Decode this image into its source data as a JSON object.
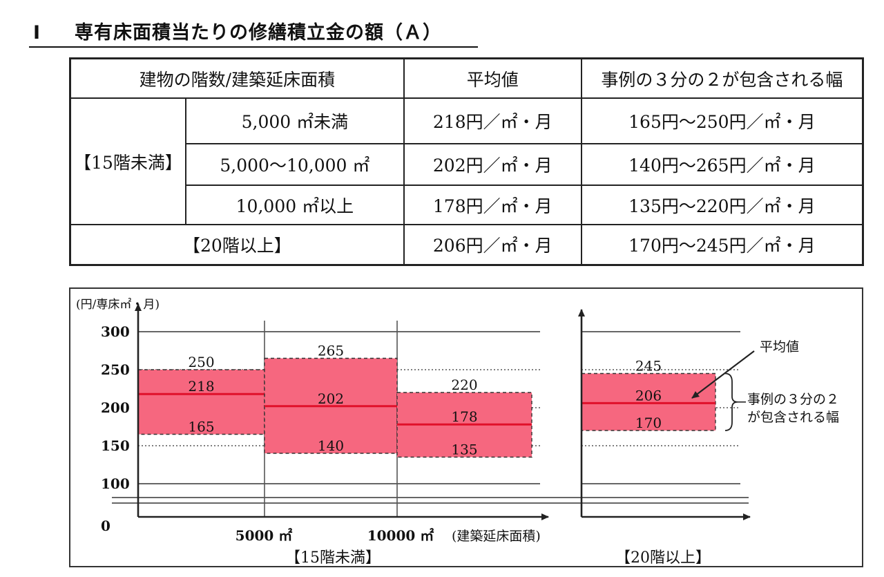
{
  "heading": {
    "number": "Ⅰ",
    "text": "専有床面積当たりの修繕積立金の額（Ａ）"
  },
  "table": {
    "headers": [
      "建物の階数/建築延床面積",
      "平均値",
      "事例の３分の２が包含される幅"
    ],
    "group_under15": "【15階未満】",
    "rows": [
      {
        "area": "5,000 ㎡未満",
        "average": "218円／㎡・月",
        "range": "165円～250円／㎡・月"
      },
      {
        "area": "5,000～10,000 ㎡",
        "average": "202円／㎡・月",
        "range": "140円～265円／㎡・月"
      },
      {
        "area": "10,000 ㎡以上",
        "average": "178円／㎡・月",
        "range": "135円～220円／㎡・月"
      }
    ],
    "row_20plus": {
      "label": "【20階以上】",
      "average": "206円／㎡・月",
      "range": "170円～245円／㎡・月"
    }
  },
  "chart_data": {
    "type": "range-bar",
    "y_unit_label": "(円/専床㎡・月)",
    "y_ticks": [
      "300",
      "250",
      "200",
      "150",
      "100",
      "0"
    ],
    "y_break": true,
    "x_tick_labels": [
      "5000 ㎡",
      "10000 ㎡"
    ],
    "x_axis_label": "(建築延床面積)",
    "group_labels": [
      "【15階未満】",
      "【20階以上】"
    ],
    "colors": {
      "band": "#f6677f",
      "average_line": "#e0102a"
    },
    "bands": [
      {
        "group": "【15階未満】",
        "low": 165,
        "avg": 218,
        "high": 250
      },
      {
        "group": "【15階未満】",
        "low": 140,
        "avg": 202,
        "high": 265
      },
      {
        "group": "【15階未満】",
        "low": 135,
        "avg": 178,
        "high": 220
      },
      {
        "group": "【20階以上】",
        "low": 170,
        "avg": 206,
        "high": 245
      }
    ],
    "annotations": {
      "average": "平均値",
      "range_line1": "事例の３分の２",
      "range_line2": "が包含される幅"
    }
  }
}
